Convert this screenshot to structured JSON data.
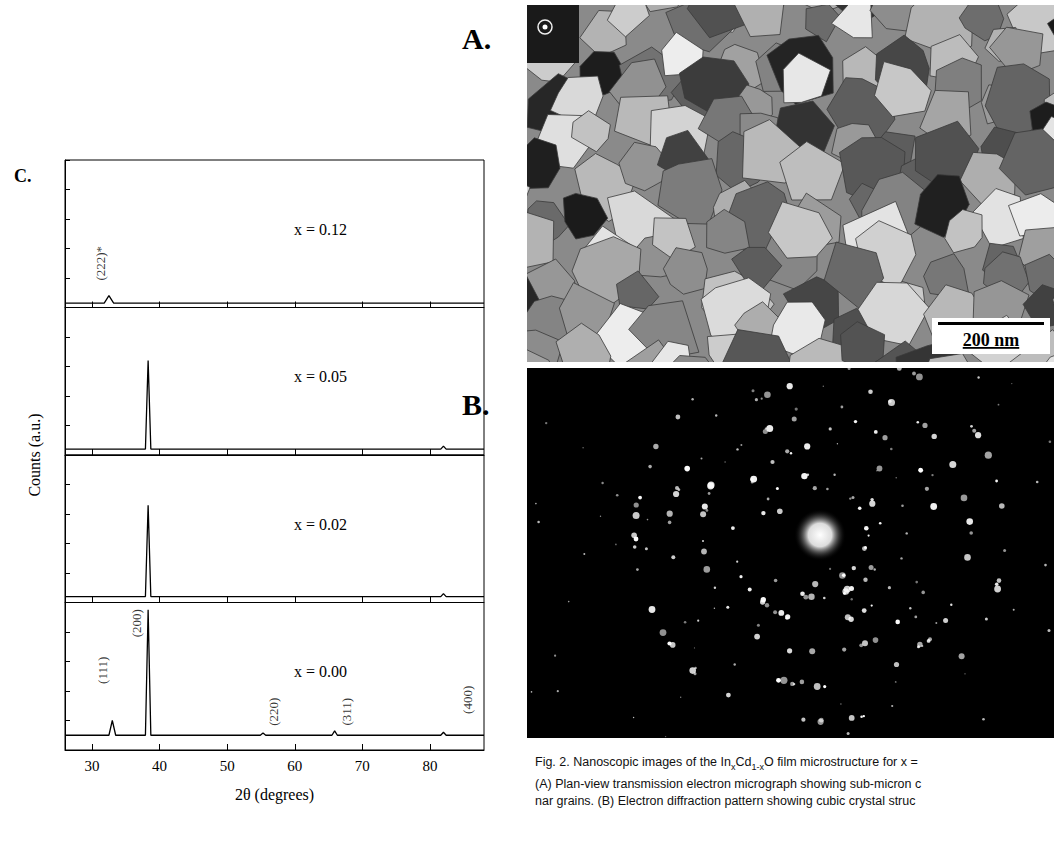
{
  "chart_data": {
    "type": "line",
    "panel_label": "C.",
    "x_label": "2θ (degrees)",
    "y_label": "Counts (a.u.)",
    "xlim": [
      26,
      88
    ],
    "xticks": [
      30,
      40,
      50,
      60,
      70,
      80
    ],
    "ylim": [
      0,
      100
    ],
    "yticks": [
      0,
      20,
      40,
      60,
      80,
      100
    ],
    "tick_labels": "x",
    "color": "#000000",
    "series": [
      {
        "name": "x = 0.12",
        "x": [
          26,
          31.8,
          32.5,
          33.2,
          88
        ],
        "values": [
          3,
          3,
          8,
          3,
          3
        ],
        "annotations": [
          {
            "text": "(222)*",
            "x": 31.3,
            "y": 30
          }
        ]
      },
      {
        "name": "x = 0.05",
        "x": [
          26,
          37.9,
          38.3,
          38.7,
          81.6,
          82.0,
          82.4,
          88
        ],
        "values": [
          4,
          4,
          64,
          4,
          4,
          6,
          4,
          4
        ],
        "annotations": []
      },
      {
        "name": "x = 0.02",
        "x": [
          26,
          37.9,
          38.3,
          38.7,
          81.6,
          82.0,
          82.4,
          88
        ],
        "values": [
          4,
          4,
          66,
          4,
          4,
          6,
          4,
          4
        ],
        "annotations": []
      },
      {
        "name": "x = 0.00",
        "x": [
          26,
          32.5,
          33.0,
          33.5,
          37.9,
          38.3,
          38.7,
          54.9,
          55.3,
          55.7,
          65.5,
          65.9,
          66.3,
          81.6,
          82.0,
          82.4,
          88
        ],
        "values": [
          10,
          10,
          20,
          10,
          10,
          95,
          10,
          10,
          11.5,
          10,
          10,
          13,
          10,
          10,
          12,
          10,
          10
        ],
        "annotations": [
          {
            "text": "(111)",
            "x": 31.6,
            "y": 54
          },
          {
            "text": "(200)",
            "x": 36.6,
            "y": 86
          },
          {
            "text": "(220)",
            "x": 56.8,
            "y": 26
          },
          {
            "text": "(311)",
            "x": 67.6,
            "y": 26
          },
          {
            "text": "(400)",
            "x": 85.6,
            "y": 34
          }
        ]
      }
    ]
  },
  "panels": {
    "A": {
      "label": "A.",
      "scale_bar": "200 nm"
    },
    "B": {
      "label": "B."
    }
  },
  "caption": [
    [
      {
        "text": "Fig. 2.    Nanoscopic images of the In"
      },
      {
        "sub": "x"
      },
      {
        "text": "Cd"
      },
      {
        "sub": "1-x"
      },
      {
        "text": "O film microstructure for x ="
      }
    ],
    [
      {
        "text": "(A) Plan-view transmission electron micrograph showing sub-micron c"
      }
    ],
    [
      {
        "text": "nar grains. (B) Electron diffraction pattern showing cubic crystal struc"
      }
    ]
  ]
}
